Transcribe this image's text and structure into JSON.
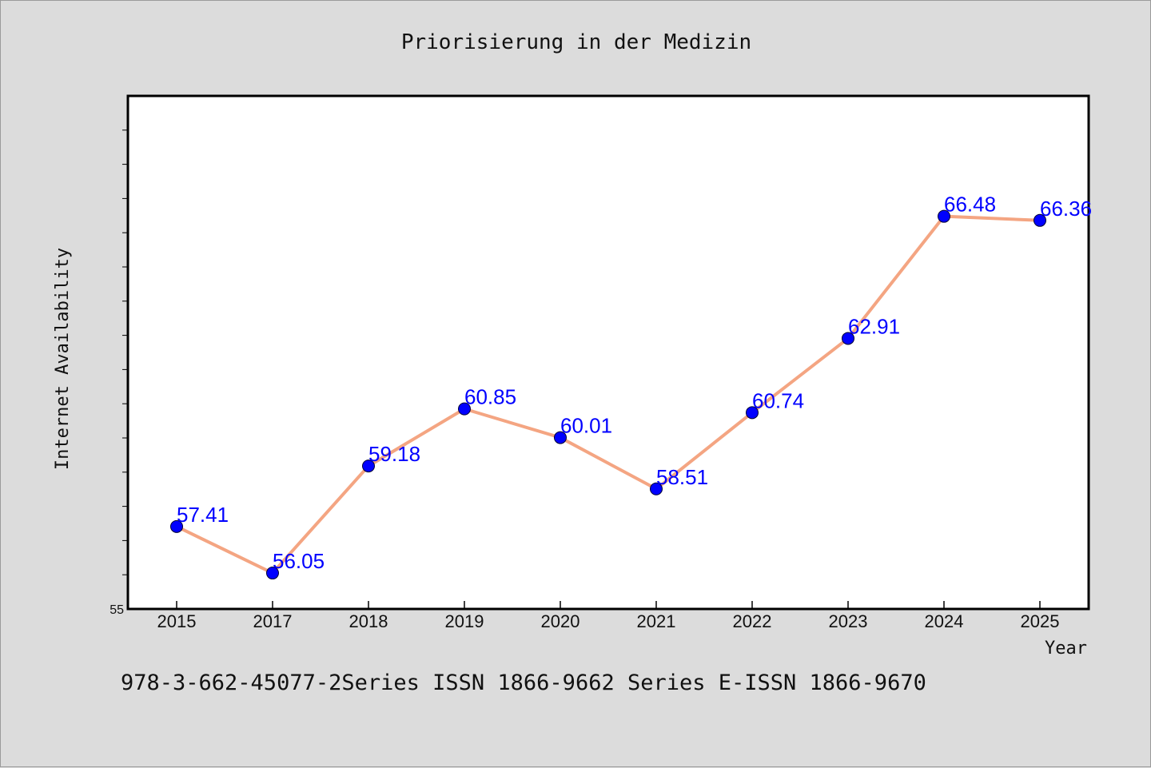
{
  "colors": {
    "background": "#dcdcdc",
    "plot_background": "#ffffff",
    "line": "#f4a582",
    "marker": "#0000ff",
    "data_label": "#0000ff"
  },
  "footer_text": "978-3-662-45077-2Series ISSN 1866-9662 Series E-ISSN 1866-9670",
  "chart_data": {
    "type": "line",
    "title": "Priorisierung in der Medizin",
    "xlabel": "Year",
    "ylabel": "Internet Availability",
    "categories": [
      "2015",
      "2017",
      "2018",
      "2019",
      "2020",
      "2021",
      "2022",
      "2023",
      "2024",
      "2025"
    ],
    "series": [
      {
        "values": [
          57.41,
          56.05,
          59.18,
          60.85,
          60.01,
          58.51,
          60.74,
          62.91,
          66.48,
          66.36
        ]
      }
    ],
    "data_labels": [
      "57.41",
      "56.05",
      "59.18",
      "60.85",
      "60.01",
      "58.51",
      "60.74",
      "62.91",
      "66.48",
      "66.36"
    ],
    "y_tick_labels": [
      "55"
    ],
    "ylim": [
      55,
      70
    ],
    "y_minor_tick_step": 1,
    "grid": false,
    "legend": "none"
  }
}
